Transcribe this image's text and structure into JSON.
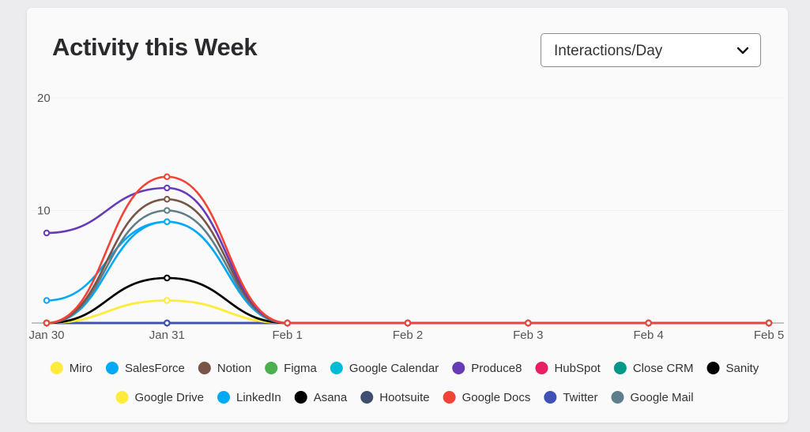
{
  "header": {
    "title": "Activity this Week",
    "metric_select": {
      "value": "Interactions/Day",
      "icon": "chevron-down-icon"
    }
  },
  "chart_data": {
    "type": "line",
    "title": "Activity this Week",
    "categories": [
      "Jan 30",
      "Jan 31",
      "Feb 1",
      "Feb 2",
      "Feb 3",
      "Feb 4",
      "Feb 5"
    ],
    "ylim": [
      0,
      20
    ],
    "yticks": [
      10,
      20
    ],
    "grid": true,
    "smooth": true,
    "legend_position": "bottom",
    "series": [
      {
        "name": "Miro",
        "color": "#ffeb3b",
        "values": [
          0,
          2,
          0,
          0,
          0,
          0,
          0
        ]
      },
      {
        "name": "SalesForce",
        "color": "#03a9f4",
        "values": [
          2,
          9,
          0,
          0,
          0,
          0,
          0
        ]
      },
      {
        "name": "Notion",
        "color": "#795548",
        "values": [
          0,
          11,
          0,
          0,
          0,
          0,
          0
        ]
      },
      {
        "name": "Figma",
        "color": "#4caf50",
        "values": [
          0,
          0,
          0,
          0,
          0,
          0,
          0
        ]
      },
      {
        "name": "Google Calendar",
        "color": "#00bcd4",
        "values": [
          0,
          0,
          0,
          0,
          0,
          0,
          0
        ]
      },
      {
        "name": "Produce8",
        "color": "#673ab7",
        "values": [
          8,
          12,
          0,
          0,
          0,
          0,
          0
        ]
      },
      {
        "name": "HubSpot",
        "color": "#e91e63",
        "values": [
          0,
          0,
          0,
          0,
          0,
          0,
          0
        ]
      },
      {
        "name": "Close CRM",
        "color": "#009688",
        "values": [
          0,
          0,
          0,
          0,
          0,
          0,
          0
        ]
      },
      {
        "name": "Sanity",
        "color": "#000000",
        "values": [
          0,
          4,
          0,
          0,
          0,
          0,
          0
        ]
      },
      {
        "name": "Google Drive",
        "color": "#ffeb3b",
        "values": [
          0,
          2,
          0,
          0,
          0,
          0,
          0
        ]
      },
      {
        "name": "LinkedIn",
        "color": "#03a9f4",
        "values": [
          0,
          9,
          0,
          0,
          0,
          0,
          0
        ]
      },
      {
        "name": "Asana",
        "color": "#000000",
        "values": [
          0,
          4,
          0,
          0,
          0,
          0,
          0
        ]
      },
      {
        "name": "Hootsuite",
        "color": "#3f4f6f",
        "values": [
          0,
          0,
          0,
          0,
          0,
          0,
          0
        ]
      },
      {
        "name": "Google Docs",
        "color": "#f44336",
        "values": [
          0,
          13,
          0,
          0,
          0,
          0,
          0
        ]
      },
      {
        "name": "Twitter",
        "color": "#3f51b5",
        "values": [
          0,
          0,
          0,
          0,
          0,
          0,
          0
        ]
      },
      {
        "name": "Google Mail",
        "color": "#607d8b",
        "values": [
          0,
          10,
          0,
          0,
          0,
          0,
          0
        ]
      }
    ]
  }
}
